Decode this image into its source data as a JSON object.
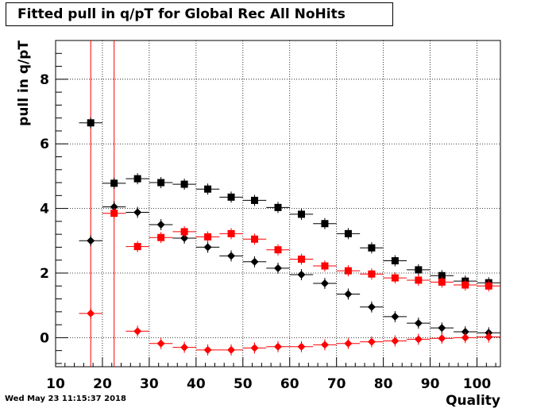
{
  "title": "Fitted pull in q/pT for Global Rec All NoHits",
  "timestamp": "Wed May 23 11:15:37 2018",
  "chart_data": {
    "type": "scatter",
    "title": "Fitted pull in q/pT for Global Rec All NoHits",
    "xlabel": "Quality",
    "ylabel": "pull in q/pT",
    "xlim": [
      10,
      105
    ],
    "ylim": [
      -0.9,
      9.2
    ],
    "x_ticks": [
      "10",
      "20",
      "30",
      "40",
      "50",
      "60",
      "70",
      "80",
      "90",
      "100"
    ],
    "y_ticks": [
      "0",
      "2",
      "4",
      "6",
      "8"
    ],
    "grid": true,
    "x": [
      17.5,
      22.5,
      27.5,
      32.5,
      37.5,
      42.5,
      47.5,
      52.5,
      57.5,
      62.5,
      67.5,
      72.5,
      77.5,
      82.5,
      87.5,
      92.5,
      97.5,
      102.5
    ],
    "vertical_lines": [
      {
        "x": 17.5,
        "color": "#ff0000"
      },
      {
        "x": 22.5,
        "color": "#ff0000"
      }
    ],
    "series": [
      {
        "marker": "square",
        "color": "#000000",
        "values": [
          6.65,
          4.78,
          4.92,
          4.8,
          4.75,
          4.6,
          4.35,
          4.25,
          4.03,
          3.82,
          3.53,
          3.22,
          2.78,
          2.38,
          2.1,
          1.92,
          1.75,
          1.7
        ]
      },
      {
        "marker": "diamond",
        "color": "#000000",
        "values": [
          3.0,
          4.05,
          3.88,
          3.5,
          3.08,
          2.8,
          2.53,
          2.35,
          2.15,
          1.95,
          1.68,
          1.35,
          0.95,
          0.65,
          0.45,
          0.3,
          0.18,
          0.15
        ]
      },
      {
        "marker": "square",
        "color": "#ff0000",
        "values": [
          null,
          3.85,
          2.82,
          3.1,
          3.28,
          3.12,
          3.22,
          3.05,
          2.72,
          2.43,
          2.22,
          2.07,
          1.97,
          1.85,
          1.78,
          1.72,
          1.63,
          1.6
        ]
      },
      {
        "marker": "diamond",
        "color": "#ff0000",
        "values": [
          0.75,
          null,
          0.2,
          -0.18,
          -0.3,
          -0.38,
          -0.38,
          -0.32,
          -0.28,
          -0.28,
          -0.22,
          -0.18,
          -0.13,
          -0.1,
          -0.05,
          -0.02,
          0.0,
          0.02
        ]
      }
    ]
  }
}
